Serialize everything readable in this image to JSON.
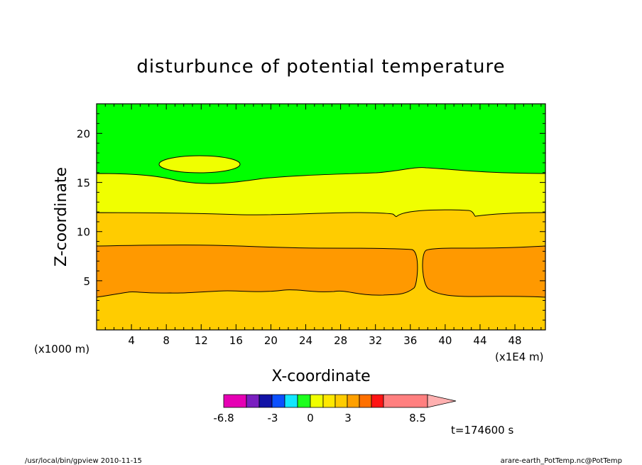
{
  "chart_data": {
    "type": "contour",
    "title": "disturbunce of potential temperature",
    "xlabel": "X-coordinate",
    "ylabel": "Z-coordinate",
    "x_unit": "(x1E4 m)",
    "y_unit": "(x1000 m)",
    "xlim": [
      0,
      51.5
    ],
    "ylim": [
      0,
      23
    ],
    "xticks": [
      "4",
      "8",
      "12",
      "16",
      "20",
      "24",
      "28",
      "32",
      "36",
      "40",
      "44",
      "48"
    ],
    "yticks": [
      "5",
      "10",
      "15",
      "20"
    ],
    "regions": [
      {
        "name": "upper",
        "color": "#00ff00"
      },
      {
        "name": "band-15",
        "color": "#f0ff00"
      },
      {
        "name": "band-11",
        "color": "#ffcc00"
      },
      {
        "name": "band-8",
        "color": "#ff9900"
      },
      {
        "name": "band-3",
        "color": "#ffcc00"
      }
    ],
    "colorbar": {
      "colors": [
        "#e600b4",
        "#7a1fc0",
        "#1212a6",
        "#0b50ff",
        "#12e6ff",
        "#1eff1e",
        "#f0ff00",
        "#ffe800",
        "#ffcc00",
        "#ffa000",
        "#ff7000",
        "#ff1414",
        "#ff7f7f",
        "#ffb0b0"
      ],
      "labels": [
        "-6.8",
        "-3",
        "0",
        "3",
        "8.5"
      ]
    },
    "time_label": "t=174600 s"
  },
  "footer": {
    "left": "/usr/local/bin/gpview   2010-11-15",
    "right": "arare-earth_PotTemp.nc@PotTemp"
  }
}
